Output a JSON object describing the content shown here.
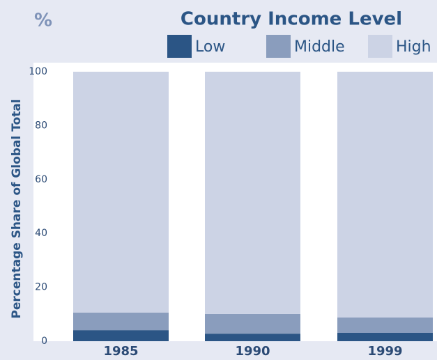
{
  "chart_data": {
    "type": "stacked_bar",
    "unit_label": "%",
    "title": "Country Income Level",
    "y_label": "Percentage Share of Global Total",
    "categories": [
      "1985",
      "1990",
      "1999"
    ],
    "series": [
      {
        "name": "Low",
        "color": "#2b5585",
        "values": [
          4.1,
          2.8,
          3.1
        ]
      },
      {
        "name": "Middle",
        "color": "#8a9dbd",
        "values": [
          6.5,
          7.3,
          5.7
        ]
      },
      {
        "name": "High",
        "color": "#ccd3e5",
        "values": [
          89.4,
          89.9,
          91.2
        ]
      }
    ],
    "ylim": [
      0,
      100
    ],
    "yticks": [
      0,
      20,
      40,
      60,
      80,
      100
    ],
    "grid": false
  }
}
